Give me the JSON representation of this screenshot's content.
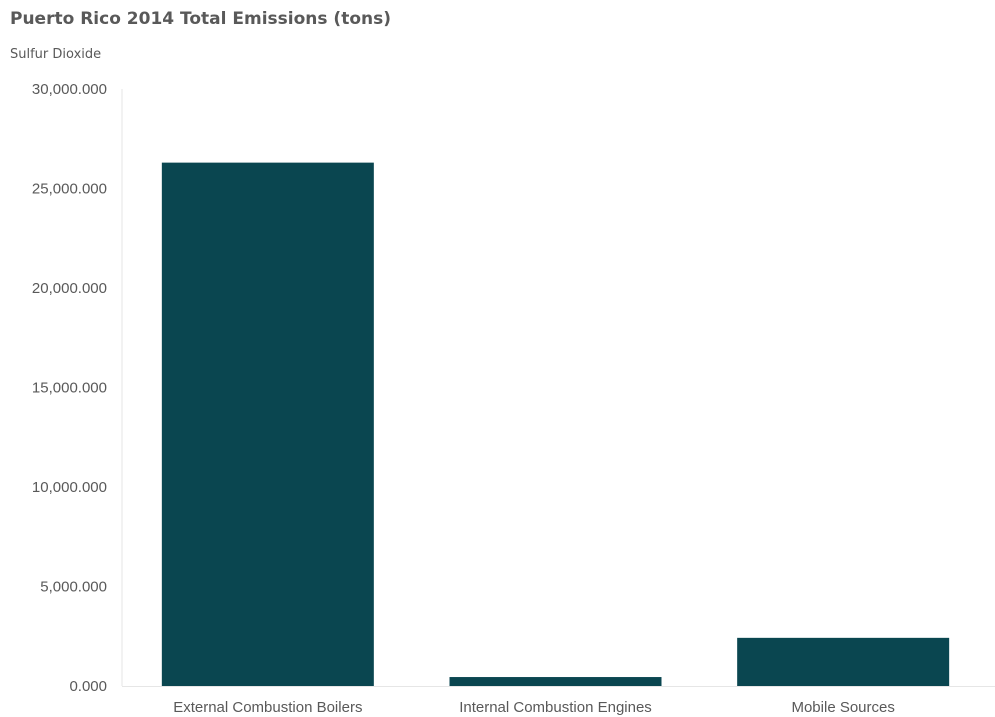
{
  "chart_data": {
    "type": "bar",
    "title": "Puerto Rico 2014 Total Emissions (tons)",
    "subtitle": "Sulfur Dioxide",
    "xlabel": "",
    "ylabel": "",
    "categories": [
      "External Combustion Boilers",
      "Internal Combustion Engines",
      "Mobile Sources"
    ],
    "values": [
      26300,
      450,
      2420
    ],
    "ylim": [
      0,
      30000
    ],
    "yticks": [
      0,
      5000,
      10000,
      15000,
      20000,
      25000,
      30000
    ],
    "ytick_labels": [
      "0.000",
      "5,000.000",
      "10,000.000",
      "15,000.000",
      "20,000.000",
      "25,000.000",
      "30,000.000"
    ],
    "grid": false,
    "legend": "none",
    "colors": {
      "bar": "#0a4650",
      "axis": "#e6e6e6",
      "text": "#595959"
    }
  }
}
